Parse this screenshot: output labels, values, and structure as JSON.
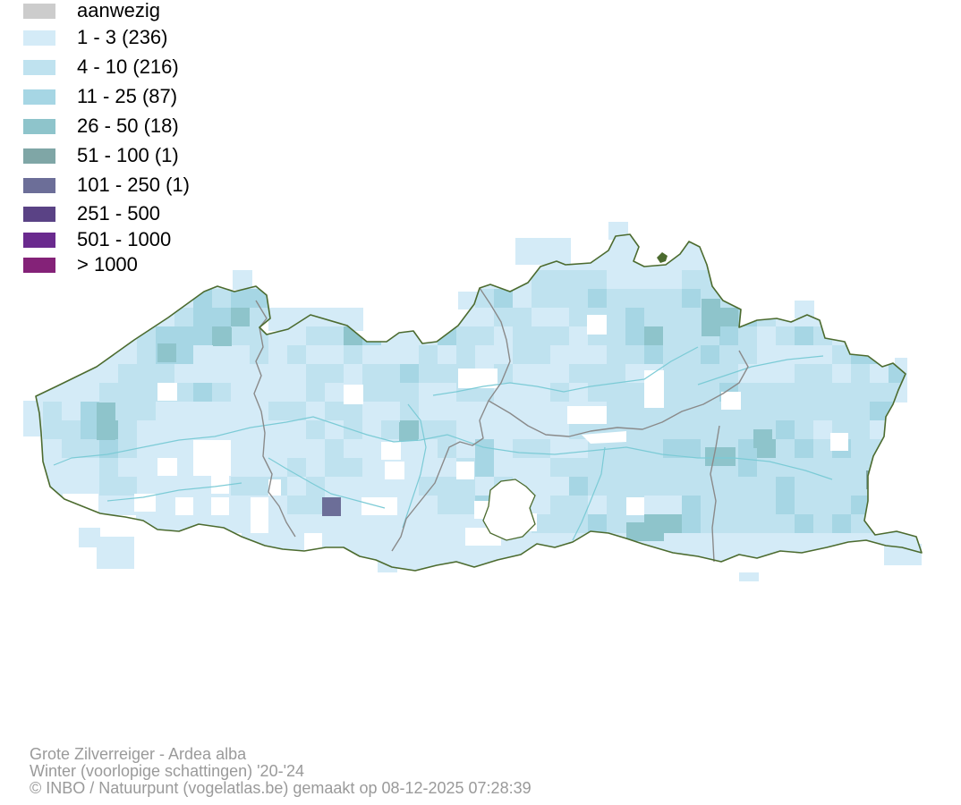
{
  "legend": {
    "items": [
      {
        "label": "aanwezig",
        "color": "#cccccc"
      },
      {
        "label": "1 - 3 (236)",
        "color": "#d4ebf7"
      },
      {
        "label": "4 - 10 (216)",
        "color": "#bfe2ef"
      },
      {
        "label": "11 - 25 (87)",
        "color": "#a6d6e4"
      },
      {
        "label": "26 - 50 (18)",
        "color": "#8ec4cb"
      },
      {
        "label": "51 - 100 (1)",
        "color": "#7fa6a6"
      },
      {
        "label": "101 - 250 (1)",
        "color": "#6c6e98"
      },
      {
        "label": "251 - 500",
        "color": "#5a4285"
      },
      {
        "label": "501 - 1000",
        "color": "#6a2a8e"
      },
      {
        "label": "> 1000",
        "color": "#842278"
      }
    ]
  },
  "map": {
    "border_color": "#4c6b2f",
    "province_border_color": "#8a8a8a",
    "river_color": "#7ccbd6",
    "base_fill": "#d4ebf7"
  },
  "footer": {
    "line1": "Grote Zilverreiger - Ardea alba",
    "line2": "Winter (voorlopige schattingen) '20-'24",
    "line3": "© INBO / Natuurpunt (vogelatlas.be) gemaakt op 08-12-2025 07:28:39"
  }
}
